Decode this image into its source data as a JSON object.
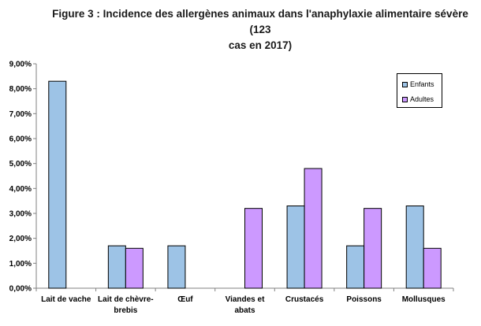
{
  "colors": {
    "enfants": "#9DC3E6",
    "adultes": "#CC99FF",
    "axis": "#808080"
  },
  "chart_data": {
    "type": "bar",
    "title_line1": "Figure 3 : Incidence des allergènes animaux dans l'anaphylaxie alimentaire sévère (123",
    "title_line2": "cas en 2017)",
    "categories": [
      [
        "Lait de vache"
      ],
      [
        "Lait de chèvre-",
        "brebis"
      ],
      [
        "Œuf"
      ],
      [
        "Viandes et",
        "abats"
      ],
      [
        "Crustacés"
      ],
      [
        "Poissons"
      ],
      [
        "Mollusques"
      ]
    ],
    "series": [
      {
        "name": "Enfants",
        "values": [
          8.3,
          1.7,
          1.7,
          0,
          3.3,
          1.7,
          3.3
        ]
      },
      {
        "name": "Adultes",
        "values": [
          0,
          1.6,
          0,
          3.2,
          4.8,
          3.2,
          1.6
        ]
      }
    ],
    "ylim": [
      0,
      9
    ],
    "yticks": [
      "0,00%",
      "1,00%",
      "2,00%",
      "3,00%",
      "4,00%",
      "5,00%",
      "6,00%",
      "7,00%",
      "8,00%",
      "9,00%"
    ],
    "grid": false,
    "legend_position": "top-right"
  }
}
